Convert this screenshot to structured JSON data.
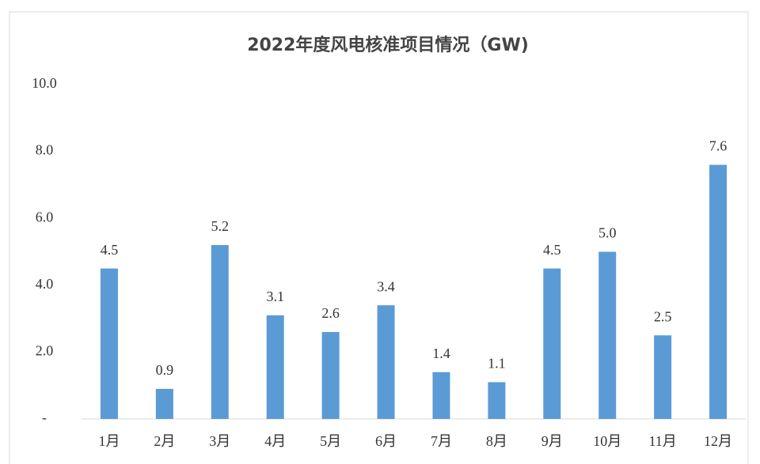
{
  "chart_data": {
    "type": "bar",
    "title": "2022年度风电核准项目情况（GW)",
    "categories": [
      "1月",
      "2月",
      "3月",
      "4月",
      "5月",
      "6月",
      "7月",
      "8月",
      "9月",
      "10月",
      "11月",
      "12月"
    ],
    "values": [
      4.5,
      0.9,
      5.2,
      3.1,
      2.6,
      3.4,
      1.4,
      1.1,
      4.5,
      5.0,
      2.5,
      7.6
    ],
    "value_labels": [
      "4.5",
      "0.9",
      "5.2",
      "3.1",
      "2.6",
      "3.4",
      "1.4",
      "1.1",
      "4.5",
      "5.0",
      "2.5",
      "7.6"
    ],
    "color": "#5b9bd5",
    "ylim": [
      0,
      10
    ],
    "yticks": [
      {
        "value": 0,
        "label": "-"
      },
      {
        "value": 2,
        "label": "2.0"
      },
      {
        "value": 4,
        "label": "4.0"
      },
      {
        "value": 6,
        "label": "6.0"
      },
      {
        "value": 8,
        "label": "8.0"
      },
      {
        "value": 10,
        "label": "10.0"
      }
    ],
    "grid": false
  }
}
